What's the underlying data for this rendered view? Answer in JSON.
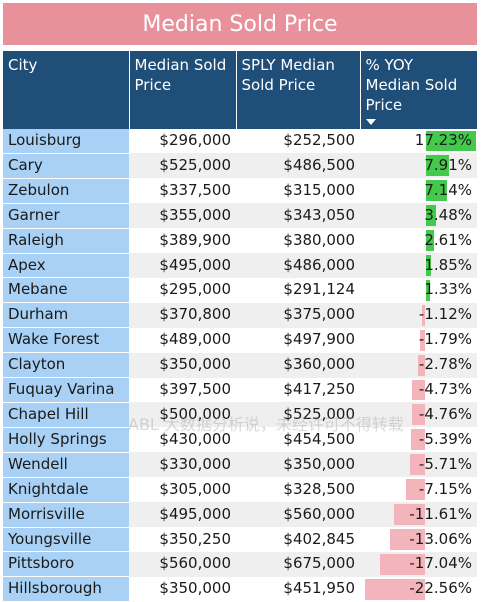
{
  "title": "Median Sold Price",
  "columns": [
    "City",
    "Median Sold Price",
    "SPLY Median Sold Price",
    "% YOY Median Sold Price"
  ],
  "colors": {
    "title_bg": "#e8919b",
    "header_bg": "#1f4e79",
    "city_bg": "#a8d1f5",
    "positive_bar": "#43c94b",
    "negative_bar": "#f3b4bb"
  },
  "rows": [
    {
      "city": "Louisburg",
      "median": "$296,000",
      "sply": "$252,500",
      "yoy": "17.23%",
      "yoy_value": 17.23
    },
    {
      "city": "Cary",
      "median": "$525,000",
      "sply": "$486,500",
      "yoy": "7.91%",
      "yoy_value": 7.91
    },
    {
      "city": "Zebulon",
      "median": "$337,500",
      "sply": "$315,000",
      "yoy": "7.14%",
      "yoy_value": 7.14
    },
    {
      "city": "Garner",
      "median": "$355,000",
      "sply": "$343,050",
      "yoy": "3.48%",
      "yoy_value": 3.48
    },
    {
      "city": "Raleigh",
      "median": "$389,900",
      "sply": "$380,000",
      "yoy": "2.61%",
      "yoy_value": 2.61
    },
    {
      "city": "Apex",
      "median": "$495,000",
      "sply": "$486,000",
      "yoy": "1.85%",
      "yoy_value": 1.85
    },
    {
      "city": "Mebane",
      "median": "$295,000",
      "sply": "$291,124",
      "yoy": "1.33%",
      "yoy_value": 1.33
    },
    {
      "city": "Durham",
      "median": "$370,800",
      "sply": "$375,000",
      "yoy": "-1.12%",
      "yoy_value": -1.12
    },
    {
      "city": "Wake Forest",
      "median": "$489,000",
      "sply": "$497,900",
      "yoy": "-1.79%",
      "yoy_value": -1.79
    },
    {
      "city": "Clayton",
      "median": "$350,000",
      "sply": "$360,000",
      "yoy": "-2.78%",
      "yoy_value": -2.78
    },
    {
      "city": "Fuquay Varina",
      "median": "$397,500",
      "sply": "$417,250",
      "yoy": "-4.73%",
      "yoy_value": -4.73
    },
    {
      "city": "Chapel Hill",
      "median": "$500,000",
      "sply": "$525,000",
      "yoy": "-4.76%",
      "yoy_value": -4.76
    },
    {
      "city": "Holly Springs",
      "median": "$430,000",
      "sply": "$454,500",
      "yoy": "-5.39%",
      "yoy_value": -5.39
    },
    {
      "city": "Wendell",
      "median": "$330,000",
      "sply": "$350,000",
      "yoy": "-5.71%",
      "yoy_value": -5.71
    },
    {
      "city": "Knightdale",
      "median": "$305,000",
      "sply": "$328,500",
      "yoy": "-7.15%",
      "yoy_value": -7.15
    },
    {
      "city": "Morrisville",
      "median": "$495,000",
      "sply": "$560,000",
      "yoy": "-11.61%",
      "yoy_value": -11.61
    },
    {
      "city": "Youngsville",
      "median": "$350,250",
      "sply": "$402,845",
      "yoy": "-13.06%",
      "yoy_value": -13.06
    },
    {
      "city": "Pittsboro",
      "median": "$560,000",
      "sply": "$675,000",
      "yoy": "-17.04%",
      "yoy_value": -17.04
    },
    {
      "city": "Hillsborough",
      "median": "$350,000",
      "sply": "$451,950",
      "yoy": "-22.56%",
      "yoy_value": -22.56
    }
  ],
  "watermark": "ABL 大数据分析说，未经许可不得转载"
}
